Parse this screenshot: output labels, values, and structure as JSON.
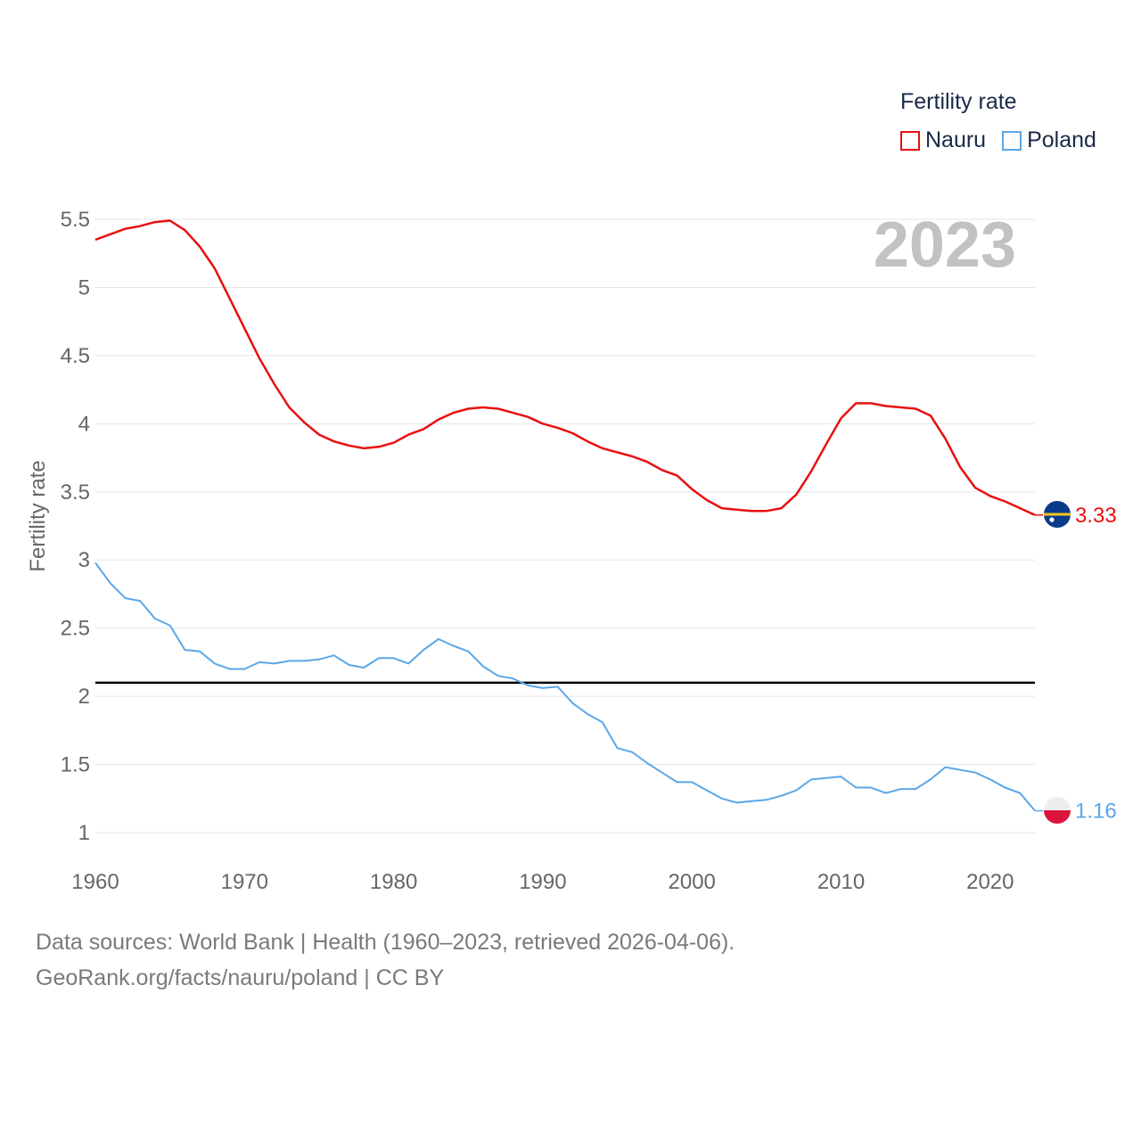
{
  "legend": {
    "title": "Fertility rate",
    "items": [
      {
        "label": "Nauru",
        "color": "#e8100f"
      },
      {
        "label": "Poland",
        "color": "#5aa7e8"
      }
    ]
  },
  "year_label": "2023",
  "footer": {
    "line1": "Data sources: World Bank | Health (1960–2023, retrieved 2026-04-06).",
    "line2": "GeoRank.org/facts/nauru/poland | CC BY"
  },
  "chart_data": {
    "type": "line",
    "title": "Fertility rate",
    "xlabel": "",
    "ylabel": "Fertility rate",
    "xlim": [
      1960,
      2023
    ],
    "ylim": [
      1,
      5.5
    ],
    "xticks": [
      1960,
      1970,
      1980,
      1990,
      2000,
      2010,
      2020
    ],
    "yticks": [
      1,
      1.5,
      2,
      2.5,
      3,
      3.5,
      4,
      4.5,
      5,
      5.5
    ],
    "ytick_labels": [
      "1",
      "1.5",
      "2",
      "2.5",
      "3",
      "3.5",
      "4",
      "4.5",
      "5",
      "5.5"
    ],
    "reference_line": 2.1,
    "grid": true,
    "series": [
      {
        "name": "Nauru",
        "color": "#e8100f",
        "end_label": "3.33",
        "flag": "nauru",
        "x": [
          1960,
          1961,
          1962,
          1963,
          1964,
          1965,
          1966,
          1967,
          1968,
          1969,
          1970,
          1971,
          1972,
          1973,
          1974,
          1975,
          1976,
          1977,
          1978,
          1979,
          1980,
          1981,
          1982,
          1983,
          1984,
          1985,
          1986,
          1987,
          1988,
          1989,
          1990,
          1991,
          1992,
          1993,
          1994,
          1995,
          1996,
          1997,
          1998,
          1999,
          2000,
          2001,
          2002,
          2003,
          2004,
          2005,
          2006,
          2007,
          2008,
          2009,
          2010,
          2011,
          2012,
          2013,
          2014,
          2015,
          2016,
          2017,
          2018,
          2019,
          2020,
          2021,
          2022,
          2023
        ],
        "values": [
          5.35,
          5.39,
          5.43,
          5.45,
          5.48,
          5.49,
          5.42,
          5.3,
          5.14,
          4.92,
          4.7,
          4.48,
          4.29,
          4.12,
          4.01,
          3.92,
          3.87,
          3.84,
          3.82,
          3.83,
          3.86,
          3.92,
          3.96,
          4.03,
          4.08,
          4.11,
          4.12,
          4.11,
          4.08,
          4.05,
          4.0,
          3.97,
          3.93,
          3.87,
          3.82,
          3.79,
          3.76,
          3.72,
          3.66,
          3.62,
          3.52,
          3.44,
          3.38,
          3.37,
          3.36,
          3.36,
          3.38,
          3.48,
          3.65,
          3.85,
          4.04,
          4.15,
          4.15,
          4.13,
          4.12,
          4.11,
          4.06,
          3.89,
          3.68,
          3.53,
          3.47,
          3.43,
          3.38,
          3.33
        ]
      },
      {
        "name": "Poland",
        "color": "#5aa7e8",
        "end_label": "1.16",
        "flag": "poland",
        "x": [
          1960,
          1961,
          1962,
          1963,
          1964,
          1965,
          1966,
          1967,
          1968,
          1969,
          1970,
          1971,
          1972,
          1973,
          1974,
          1975,
          1976,
          1977,
          1978,
          1979,
          1980,
          1981,
          1982,
          1983,
          1984,
          1985,
          1986,
          1987,
          1988,
          1989,
          1990,
          1991,
          1992,
          1993,
          1994,
          1995,
          1996,
          1997,
          1998,
          1999,
          2000,
          2001,
          2002,
          2003,
          2004,
          2005,
          2006,
          2007,
          2008,
          2009,
          2010,
          2011,
          2012,
          2013,
          2014,
          2015,
          2016,
          2017,
          2018,
          2019,
          2020,
          2021,
          2022,
          2023
        ],
        "values": [
          2.98,
          2.83,
          2.72,
          2.7,
          2.57,
          2.52,
          2.34,
          2.33,
          2.24,
          2.2,
          2.2,
          2.25,
          2.24,
          2.26,
          2.26,
          2.27,
          2.3,
          2.23,
          2.21,
          2.28,
          2.28,
          2.24,
          2.34,
          2.42,
          2.37,
          2.33,
          2.22,
          2.15,
          2.13,
          2.08,
          2.06,
          2.07,
          1.95,
          1.87,
          1.81,
          1.62,
          1.59,
          1.51,
          1.44,
          1.37,
          1.37,
          1.31,
          1.25,
          1.22,
          1.23,
          1.24,
          1.27,
          1.31,
          1.39,
          1.4,
          1.41,
          1.33,
          1.33,
          1.29,
          1.32,
          1.32,
          1.39,
          1.48,
          1.46,
          1.44,
          1.39,
          1.33,
          1.29,
          1.16
        ]
      }
    ]
  }
}
